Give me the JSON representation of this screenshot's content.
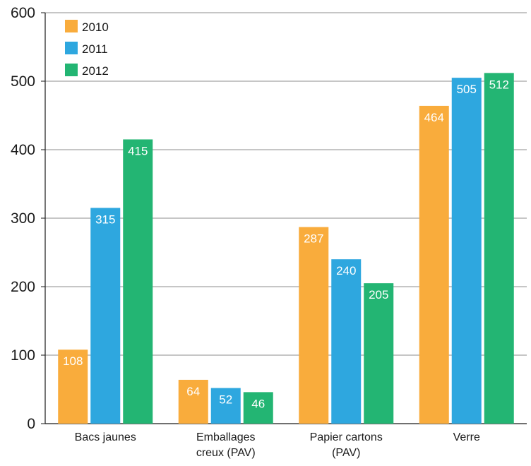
{
  "chart_data": {
    "type": "bar",
    "title": "",
    "xlabel": "",
    "ylabel": "",
    "categories": [
      [
        "Bacs jaunes"
      ],
      [
        "Emballages",
        "creux (PAV)"
      ],
      [
        "Papier cartons",
        "(PAV)"
      ],
      [
        "Verre"
      ]
    ],
    "series": [
      {
        "name": "2010",
        "color": "#F9AC3C",
        "values": [
          108,
          64,
          287,
          464
        ]
      },
      {
        "name": "2011",
        "color": "#2EA7DF",
        "values": [
          315,
          52,
          240,
          505
        ]
      },
      {
        "name": "2012",
        "color": "#23B573",
        "values": [
          415,
          46,
          205,
          512
        ]
      }
    ],
    "ylim": [
      0,
      600
    ],
    "yticks": [
      0,
      100,
      200,
      300,
      400,
      500,
      600
    ],
    "grid": true,
    "legend_position": "top-left",
    "data_labels": true
  }
}
